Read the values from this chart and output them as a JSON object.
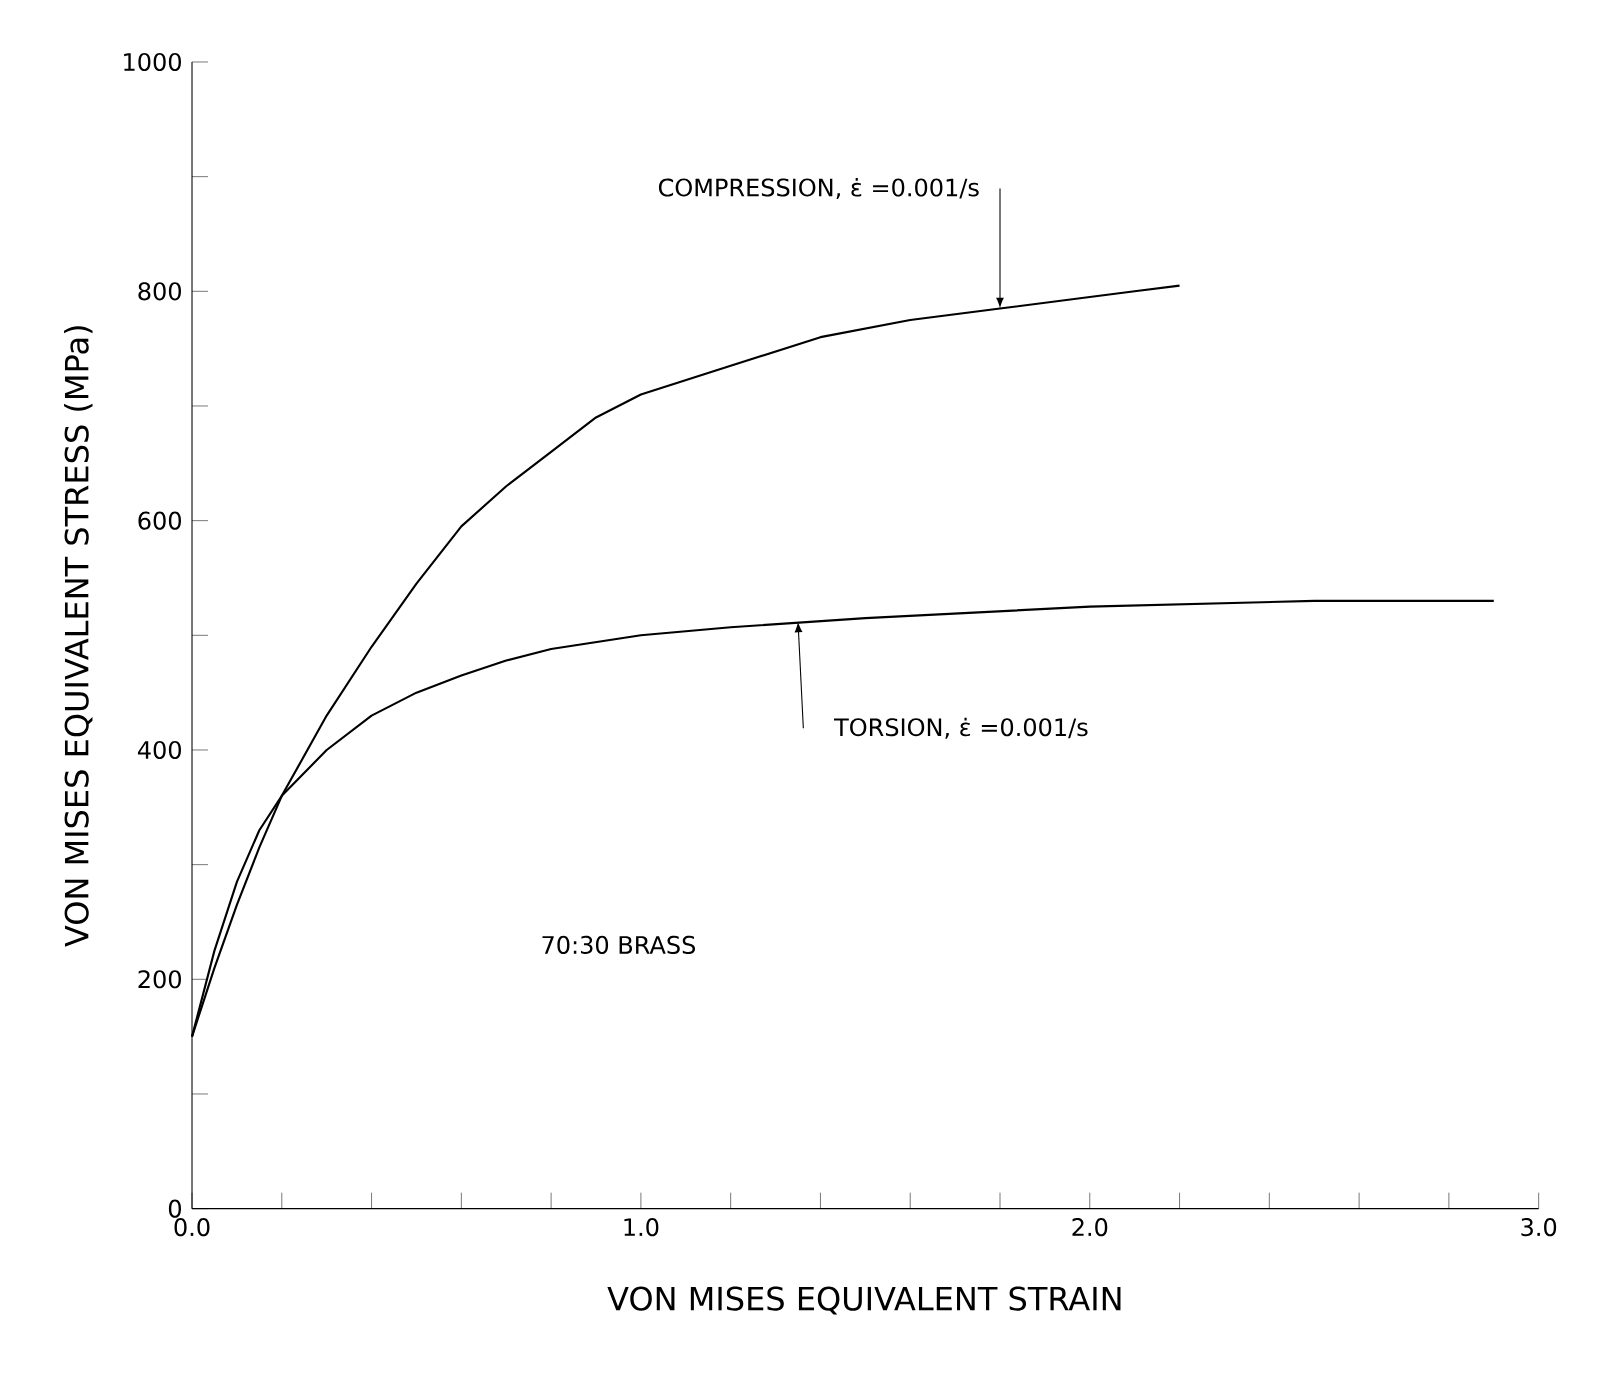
{
  "chart_data": {
    "type": "line",
    "xlabel": "VON MISES EQUIVALENT STRAIN",
    "ylabel": "VON MISES EQUIVALENT STRESS (MPa)",
    "series": [
      {
        "color": "#000000",
        "x": [
          0,
          0.05,
          0.1,
          0.15,
          0.2,
          0.3,
          0.4,
          0.5,
          0.6,
          0.7,
          0.8,
          0.9,
          1.0,
          1.2,
          1.4,
          1.6,
          1.8,
          2.0,
          2.1,
          2.2
        ],
        "values": [
          150,
          210,
          265,
          315,
          360,
          430,
          490,
          545,
          595,
          630,
          660,
          690,
          710,
          735,
          760,
          775,
          785,
          795,
          800,
          805
        ]
      },
      {
        "color": "#000000",
        "x": [
          0,
          0.05,
          0.1,
          0.15,
          0.2,
          0.3,
          0.4,
          0.5,
          0.6,
          0.7,
          0.8,
          1.0,
          1.2,
          1.5,
          2.0,
          2.5,
          2.9
        ],
        "values": [
          150,
          225,
          285,
          330,
          360,
          400,
          430,
          450,
          465,
          478,
          488,
          500,
          507,
          515,
          525,
          530,
          530
        ]
      }
    ],
    "annotations": [
      {
        "text": "COMPRESSION, ε̇ =0.001/s",
        "x": 1.8,
        "y": 785
      },
      {
        "text": "TORSION, ε̇ =0.001/s",
        "x": 1.35,
        "y": 512
      },
      "70:30 BRASS"
    ],
    "xlim": [
      0,
      3
    ],
    "ylim": [
      0,
      1000
    ],
    "xticks": [
      {
        "value": 0,
        "label": "0.0"
      },
      {
        "value": 0.2,
        "label": null
      },
      {
        "value": 0.4,
        "label": null
      },
      {
        "value": 0.6,
        "label": null
      },
      {
        "value": 0.8,
        "label": null
      },
      {
        "value": 1,
        "label": "1.0"
      },
      {
        "value": 1.2,
        "label": null
      },
      {
        "value": 1.4,
        "label": null
      },
      {
        "value": 1.6,
        "label": null
      },
      {
        "value": 1.8,
        "label": null
      },
      {
        "value": 2,
        "label": "2.0"
      },
      {
        "value": 2.2,
        "label": null
      },
      {
        "value": 2.4,
        "label": null
      },
      {
        "value": 2.6,
        "label": null
      },
      {
        "value": 2.8,
        "label": null
      },
      {
        "value": 3,
        "label": "3.0"
      }
    ],
    "yticks": [
      0,
      {
        "value": 100,
        "label": null
      },
      200,
      {
        "value": 300,
        "label": null
      },
      400,
      {
        "value": 500,
        "label": null
      },
      600,
      {
        "value": 700,
        "label": null
      },
      800,
      {
        "value": 900,
        "label": null
      },
      1000
    ],
    "grid": false,
    "legend": false,
    "marker": "none",
    "line_style": "solid"
  }
}
